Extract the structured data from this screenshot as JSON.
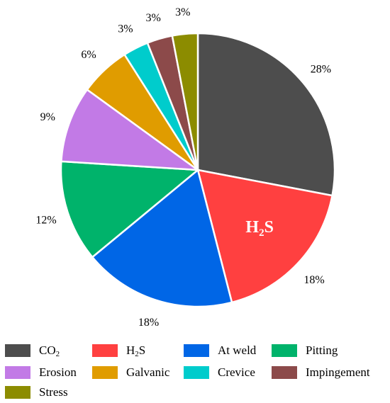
{
  "chart_data": {
    "type": "pie",
    "slices": [
      {
        "name": "CO2",
        "label_main": "CO",
        "label_sub": "2",
        "label_tail": "",
        "value": 28,
        "label": "28%",
        "color": "#4d4d4d"
      },
      {
        "name": "H2S",
        "label_main": "H",
        "label_sub": "2",
        "label_tail": "S",
        "value": 18,
        "label": "18%",
        "color": "#ff4040"
      },
      {
        "name": "At weld",
        "label_main": "At weld",
        "label_sub": "",
        "label_tail": "",
        "value": 18,
        "label": "18%",
        "color": "#0066e6"
      },
      {
        "name": "Pitting",
        "label_main": "Pitting",
        "label_sub": "",
        "label_tail": "",
        "value": 12,
        "label": "12%",
        "color": "#00b36b"
      },
      {
        "name": "Erosion",
        "label_main": "Erosion",
        "label_sub": "",
        "label_tail": "",
        "value": 9,
        "label": "9%",
        "color": "#c27ae6"
      },
      {
        "name": "Galvanic",
        "label_main": "Galvanic",
        "label_sub": "",
        "label_tail": "",
        "value": 6,
        "label": "6%",
        "color": "#e09c00"
      },
      {
        "name": "Crevice",
        "label_main": "Crevice",
        "label_sub": "",
        "label_tail": "",
        "value": 3,
        "label": "3%",
        "color": "#00cccc"
      },
      {
        "name": "Impingement",
        "label_main": "Impingement",
        "label_sub": "",
        "label_tail": "",
        "value": 3,
        "label": "3%",
        "color": "#8c4a4a"
      },
      {
        "name": "Stress",
        "label_main": "Stress",
        "label_sub": "",
        "label_tail": "",
        "value": 3,
        "label": "3%",
        "color": "#8c8c00"
      }
    ],
    "inner_label": {
      "slice": "H2S",
      "main": "H",
      "sub": "2",
      "tail": "S"
    },
    "legend_position": "bottom",
    "start_angle": "12 o'clock",
    "direction": "clockwise"
  }
}
